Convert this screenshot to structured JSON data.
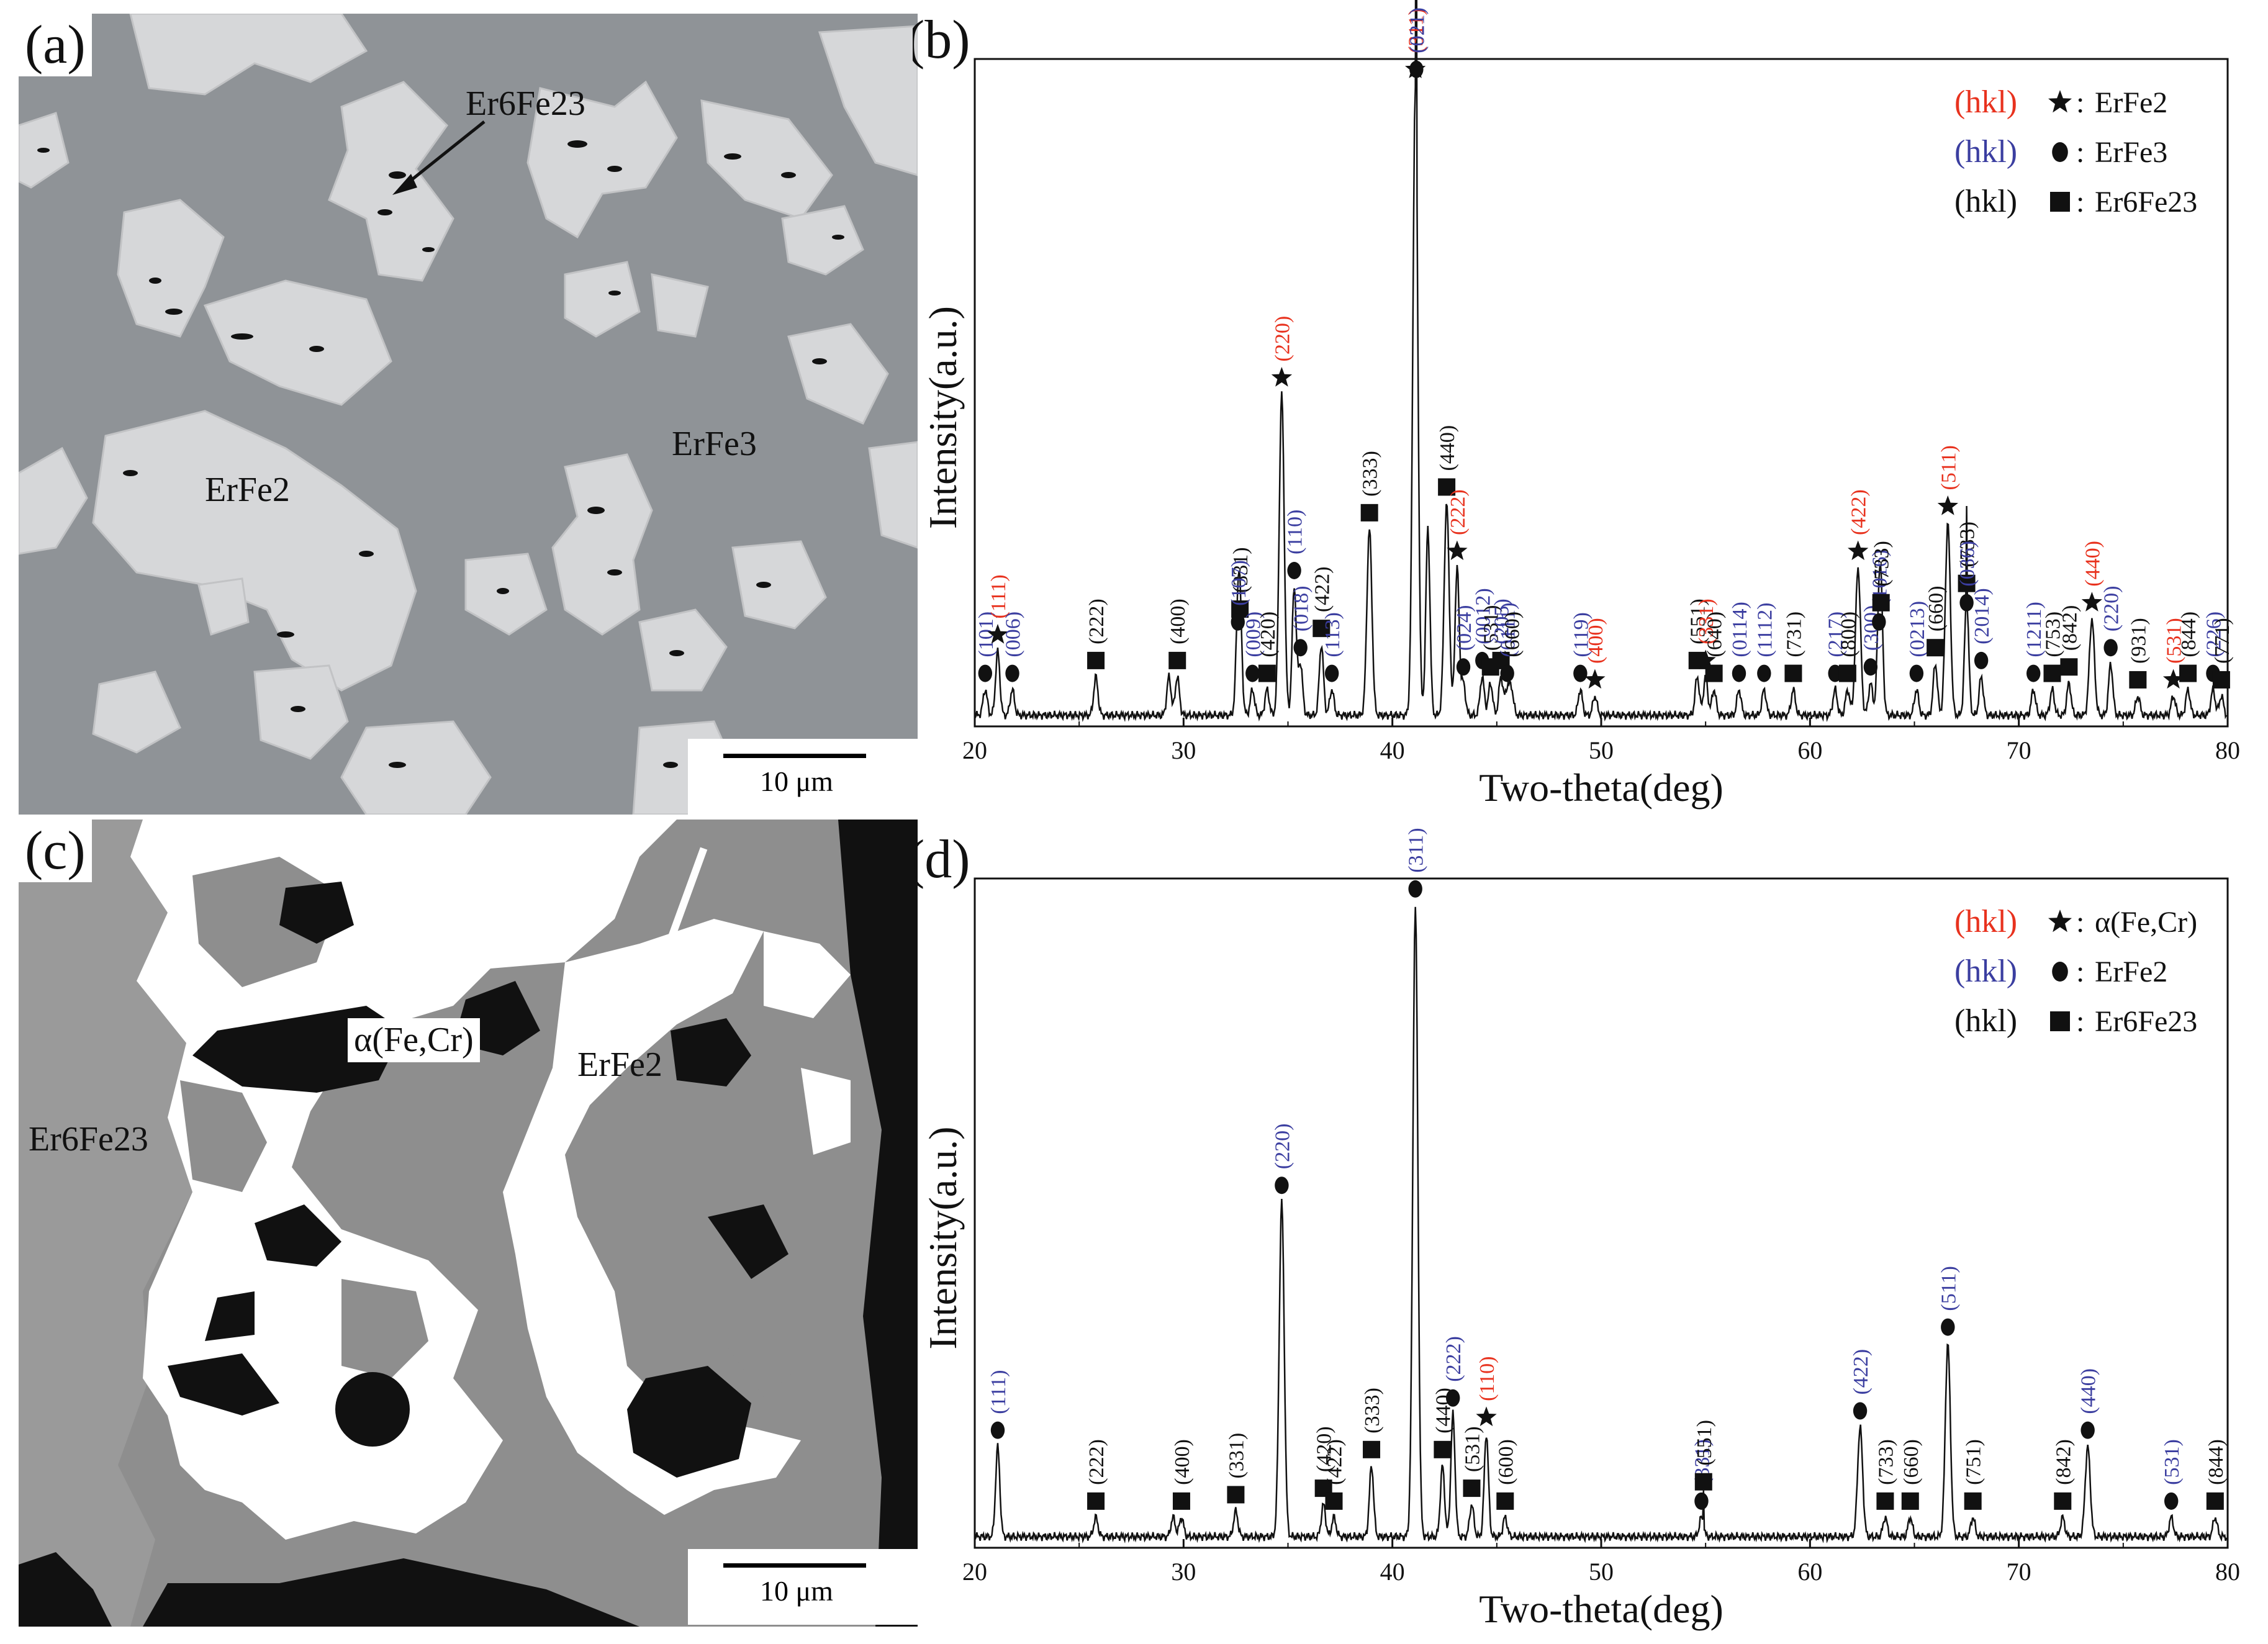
{
  "colors": {
    "red": "#e8321e",
    "blue": "#3b3ea0",
    "black": "#111111",
    "matrix_grey": "#8f9397",
    "bright_phase": "#d6d7d9",
    "c_grey": "#8e8e8e"
  },
  "panels": {
    "a": {
      "letter": "(a)",
      "labels": {
        "er6fe23": "Er6Fe23",
        "erfe2": "ErFe2",
        "erfe3": "ErFe3"
      },
      "scale": "10 μm"
    },
    "c": {
      "letter": "(c)",
      "labels": {
        "alpha": "α(Fe,Cr)",
        "erfe2": "ErFe2",
        "er6fe23": "Er6Fe23"
      },
      "scale": "10 μm"
    }
  },
  "xrd_b": {
    "letter": "(b)",
    "legend": [
      {
        "hkl": "(hkl)",
        "hkl_color": "red",
        "marker": "star",
        "phase": "ErFe2"
      },
      {
        "hkl": "(hkl)",
        "hkl_color": "blue",
        "marker": "circle",
        "phase": "ErFe3"
      },
      {
        "hkl": "(hkl)",
        "hkl_color": "black",
        "marker": "square",
        "phase": "Er6Fe23"
      }
    ]
  },
  "xrd_d": {
    "letter": "(d)",
    "legend": [
      {
        "hkl": "(hkl)",
        "hkl_color": "red",
        "marker": "star",
        "phase": "α(Fe,Cr)"
      },
      {
        "hkl": "(hkl)",
        "hkl_color": "blue",
        "marker": "circle",
        "phase": "ErFe2"
      },
      {
        "hkl": "(hkl)",
        "hkl_color": "black",
        "marker": "square",
        "phase": "Er6Fe23"
      }
    ]
  },
  "chart_data": [
    {
      "id": "b",
      "type": "line",
      "xlabel": "Two-theta(deg)",
      "ylabel": "Intensity(a.u.)",
      "xlim": [
        20,
        80
      ],
      "ylim": [
        0,
        100
      ],
      "xticks": [
        20,
        30,
        40,
        50,
        60,
        70,
        80
      ],
      "baseline": 0,
      "peaks": [
        {
          "x": 20.5,
          "y": 4,
          "w": 0.1,
          "marker": "circle",
          "label": "(101)",
          "color": "blue"
        },
        {
          "x": 21.1,
          "y": 10,
          "w": 0.1,
          "marker": "star",
          "label": "(111)",
          "color": "red"
        },
        {
          "x": 21.8,
          "y": 4,
          "w": 0.1,
          "marker": "circle",
          "label": "(006)",
          "color": "blue"
        },
        {
          "x": 25.8,
          "y": 6,
          "w": 0.1,
          "marker": "square",
          "label": "(222)",
          "color": "black"
        },
        {
          "x": 29.3,
          "y": 6,
          "w": 0.1,
          "marker": null,
          "label": "",
          "color": "black"
        },
        {
          "x": 29.7,
          "y": 6,
          "w": 0.1,
          "marker": "square",
          "label": "(400)",
          "color": "black"
        },
        {
          "x": 32.7,
          "y": 14,
          "w": 0.1,
          "marker": "square",
          "label": "(331)",
          "color": "black"
        },
        {
          "x": 32.6,
          "y": 12,
          "w": 0.1,
          "marker": "circle",
          "label": "(107)",
          "color": "blue"
        },
        {
          "x": 33.3,
          "y": 4,
          "w": 0.1,
          "marker": "circle",
          "label": "(009)",
          "color": "blue"
        },
        {
          "x": 34.0,
          "y": 4,
          "w": 0.1,
          "marker": "square",
          "label": "(420)",
          "color": "black"
        },
        {
          "x": 34.7,
          "y": 50,
          "w": 0.12,
          "marker": "star",
          "label": "(220)",
          "color": "red"
        },
        {
          "x": 35.3,
          "y": 20,
          "w": 0.1,
          "marker": "circle",
          "label": "(110)",
          "color": "blue"
        },
        {
          "x": 35.6,
          "y": 8,
          "w": 0.1,
          "marker": "circle",
          "label": "(018)",
          "color": "blue"
        },
        {
          "x": 36.6,
          "y": 11,
          "w": 0.1,
          "marker": "square",
          "label": "(422)",
          "color": "black"
        },
        {
          "x": 37.1,
          "y": 4,
          "w": 0.1,
          "marker": "circle",
          "label": "(113)",
          "color": "blue"
        },
        {
          "x": 38.9,
          "y": 29,
          "w": 0.12,
          "marker": "square",
          "label": "(333)",
          "color": "black"
        },
        {
          "x": 41.1,
          "y": 98,
          "w": 0.12,
          "marker": "star",
          "label": "(311)",
          "color": "red"
        },
        {
          "x": 41.15,
          "y": 98,
          "w": 0.01,
          "marker": "circle",
          "label": "(021)",
          "color": "blue"
        },
        {
          "x": 41.7,
          "y": 29,
          "w": 0.1,
          "marker": null,
          "label": "",
          "color": "black"
        },
        {
          "x": 42.6,
          "y": 33,
          "w": 0.12,
          "marker": "square",
          "label": "(440)",
          "color": "black"
        },
        {
          "x": 43.1,
          "y": 23,
          "w": 0.1,
          "marker": "star",
          "label": "(222)",
          "color": "red"
        },
        {
          "x": 43.4,
          "y": 5,
          "w": 0.1,
          "marker": "circle",
          "label": "(024)",
          "color": "blue"
        },
        {
          "x": 44.3,
          "y": 6,
          "w": 0.1,
          "marker": "circle",
          "label": "(0012)",
          "color": "blue"
        },
        {
          "x": 44.7,
          "y": 5,
          "w": 0.1,
          "marker": "square",
          "label": "(531)",
          "color": "black"
        },
        {
          "x": 45.2,
          "y": 6,
          "w": 0.1,
          "marker": "square",
          "label": "(205)",
          "color": "blue"
        },
        {
          "x": 45.5,
          "y": 4,
          "w": 0.1,
          "marker": "circle",
          "label": "(0111)",
          "color": "blue"
        },
        {
          "x": 45.7,
          "y": 4,
          "w": 0.1,
          "marker": null,
          "label": "(660)",
          "color": "black"
        },
        {
          "x": 49.0,
          "y": 4,
          "w": 0.1,
          "marker": "circle",
          "label": "(119)",
          "color": "blue"
        },
        {
          "x": 49.7,
          "y": 3,
          "w": 0.1,
          "marker": "star",
          "label": "(400)",
          "color": "red"
        },
        {
          "x": 54.6,
          "y": 6,
          "w": 0.1,
          "marker": "square",
          "label": "(551)",
          "color": "black"
        },
        {
          "x": 55.0,
          "y": 6,
          "w": 0.1,
          "marker": "star",
          "label": "(331)",
          "color": "red"
        },
        {
          "x": 55.4,
          "y": 4,
          "w": 0.1,
          "marker": "square",
          "label": "(640)",
          "color": "black"
        },
        {
          "x": 56.6,
          "y": 4,
          "w": 0.1,
          "marker": "circle",
          "label": "(0114)",
          "color": "blue"
        },
        {
          "x": 57.8,
          "y": 4,
          "w": 0.1,
          "marker": "circle",
          "label": "(1112)",
          "color": "blue"
        },
        {
          "x": 59.2,
          "y": 4,
          "w": 0.1,
          "marker": "square",
          "label": "(731)",
          "color": "black"
        },
        {
          "x": 61.2,
          "y": 4,
          "w": 0.1,
          "marker": "circle",
          "label": "(217)",
          "color": "blue"
        },
        {
          "x": 61.8,
          "y": 4,
          "w": 0.1,
          "marker": "square",
          "label": "(800)",
          "color": "black"
        },
        {
          "x": 62.3,
          "y": 23,
          "w": 0.12,
          "marker": "star",
          "label": "(422)",
          "color": "red"
        },
        {
          "x": 62.9,
          "y": 5,
          "w": 0.1,
          "marker": "circle",
          "label": "(300)",
          "color": "blue"
        },
        {
          "x": 63.3,
          "y": 12,
          "w": 0.1,
          "marker": "circle",
          "label": "(1016)",
          "color": "blue"
        },
        {
          "x": 63.4,
          "y": 15,
          "w": 0.1,
          "marker": "square",
          "label": "(733)",
          "color": "black"
        },
        {
          "x": 65.1,
          "y": 4,
          "w": 0.1,
          "marker": "circle",
          "label": "(0213)",
          "color": "blue"
        },
        {
          "x": 66.0,
          "y": 8,
          "w": 0.1,
          "marker": "square",
          "label": "(660)",
          "color": "black"
        },
        {
          "x": 66.6,
          "y": 30,
          "w": 0.12,
          "marker": "star",
          "label": "(511)",
          "color": "red"
        },
        {
          "x": 67.5,
          "y": 18,
          "w": 0.1,
          "marker": "square",
          "label": "(733)",
          "color": "black"
        },
        {
          "x": 67.5,
          "y": 15,
          "w": 0.01,
          "marker": "circle",
          "label": "(036)",
          "color": "blue"
        },
        {
          "x": 68.2,
          "y": 6,
          "w": 0.1,
          "marker": "circle",
          "label": "(2014)",
          "color": "blue"
        },
        {
          "x": 70.7,
          "y": 4,
          "w": 0.1,
          "marker": "circle",
          "label": "(1211)",
          "color": "blue"
        },
        {
          "x": 71.6,
          "y": 4,
          "w": 0.1,
          "marker": "square",
          "label": "(753)",
          "color": "black"
        },
        {
          "x": 72.4,
          "y": 5,
          "w": 0.1,
          "marker": "square",
          "label": "(842)",
          "color": "black"
        },
        {
          "x": 73.5,
          "y": 15,
          "w": 0.12,
          "marker": "star",
          "label": "(440)",
          "color": "red"
        },
        {
          "x": 74.4,
          "y": 8,
          "w": 0.1,
          "marker": "circle",
          "label": "(220)",
          "color": "blue"
        },
        {
          "x": 75.7,
          "y": 3,
          "w": 0.1,
          "marker": "square",
          "label": "(931)",
          "color": "black"
        },
        {
          "x": 77.4,
          "y": 3,
          "w": 0.1,
          "marker": "star",
          "label": "(531)",
          "color": "red"
        },
        {
          "x": 78.1,
          "y": 4,
          "w": 0.1,
          "marker": "square",
          "label": "(844)",
          "color": "black"
        },
        {
          "x": 79.3,
          "y": 4,
          "w": 0.1,
          "marker": "circle",
          "label": "(226)",
          "color": "blue"
        },
        {
          "x": 79.7,
          "y": 3,
          "w": 0.1,
          "marker": "square",
          "label": "(771)",
          "color": "black"
        }
      ]
    },
    {
      "id": "d",
      "type": "line",
      "xlabel": "Two-theta(deg)",
      "ylabel": "Intensity(a.u.)",
      "xlim": [
        20,
        80
      ],
      "ylim": [
        0,
        100
      ],
      "xticks": [
        20,
        30,
        40,
        50,
        60,
        70,
        80
      ],
      "baseline": 0,
      "peaks": [
        {
          "x": 21.1,
          "y": 14,
          "w": 0.1,
          "marker": "circle",
          "label": "(111)",
          "color": "blue"
        },
        {
          "x": 25.8,
          "y": 3,
          "w": 0.1,
          "marker": "square",
          "label": "(222)",
          "color": "black"
        },
        {
          "x": 29.5,
          "y": 3,
          "w": 0.1,
          "marker": null,
          "label": "",
          "color": "black"
        },
        {
          "x": 29.9,
          "y": 3,
          "w": 0.1,
          "marker": "square",
          "label": "(400)",
          "color": "black"
        },
        {
          "x": 32.5,
          "y": 4,
          "w": 0.1,
          "marker": "square",
          "label": "(331)",
          "color": "black"
        },
        {
          "x": 34.7,
          "y": 52,
          "w": 0.12,
          "marker": "circle",
          "label": "(220)",
          "color": "blue"
        },
        {
          "x": 36.7,
          "y": 5,
          "w": 0.1,
          "marker": "square",
          "label": "(420)",
          "color": "black"
        },
        {
          "x": 37.2,
          "y": 3,
          "w": 0.1,
          "marker": "square",
          "label": "(422)",
          "color": "black"
        },
        {
          "x": 39.0,
          "y": 11,
          "w": 0.1,
          "marker": "square",
          "label": "(333)",
          "color": "black"
        },
        {
          "x": 41.1,
          "y": 98,
          "w": 0.12,
          "marker": "circle",
          "label": "(311)",
          "color": "blue"
        },
        {
          "x": 42.4,
          "y": 11,
          "w": 0.1,
          "marker": "square",
          "label": "(440)",
          "color": "black"
        },
        {
          "x": 42.9,
          "y": 19,
          "w": 0.1,
          "marker": "circle",
          "label": "(222)",
          "color": "blue"
        },
        {
          "x": 43.8,
          "y": 5,
          "w": 0.1,
          "marker": "square",
          "label": "(531)",
          "color": "black"
        },
        {
          "x": 44.5,
          "y": 16,
          "w": 0.1,
          "marker": "star",
          "label": "(110)",
          "color": "red"
        },
        {
          "x": 45.4,
          "y": 3,
          "w": 0.1,
          "marker": "square",
          "label": "(600)",
          "color": "black"
        },
        {
          "x": 54.8,
          "y": 3,
          "w": 0.1,
          "marker": "circle",
          "label": "(331)",
          "color": "blue"
        },
        {
          "x": 54.9,
          "y": 6,
          "w": 0.01,
          "marker": "square",
          "label": "(551)",
          "color": "black"
        },
        {
          "x": 62.4,
          "y": 17,
          "w": 0.12,
          "marker": "circle",
          "label": "(422)",
          "color": "blue"
        },
        {
          "x": 63.6,
          "y": 3,
          "w": 0.1,
          "marker": "square",
          "label": "(733)",
          "color": "black"
        },
        {
          "x": 64.8,
          "y": 3,
          "w": 0.1,
          "marker": "square",
          "label": "(660)",
          "color": "black"
        },
        {
          "x": 66.6,
          "y": 30,
          "w": 0.12,
          "marker": "circle",
          "label": "(511)",
          "color": "blue"
        },
        {
          "x": 67.8,
          "y": 3,
          "w": 0.1,
          "marker": "square",
          "label": "(751)",
          "color": "black"
        },
        {
          "x": 72.1,
          "y": 3,
          "w": 0.1,
          "marker": "square",
          "label": "(842)",
          "color": "black"
        },
        {
          "x": 73.3,
          "y": 14,
          "w": 0.12,
          "marker": "circle",
          "label": "(440)",
          "color": "blue"
        },
        {
          "x": 77.3,
          "y": 3,
          "w": 0.1,
          "marker": "circle",
          "label": "(531)",
          "color": "blue"
        },
        {
          "x": 79.4,
          "y": 3,
          "w": 0.1,
          "marker": "square",
          "label": "(844)",
          "color": "black"
        }
      ]
    }
  ]
}
